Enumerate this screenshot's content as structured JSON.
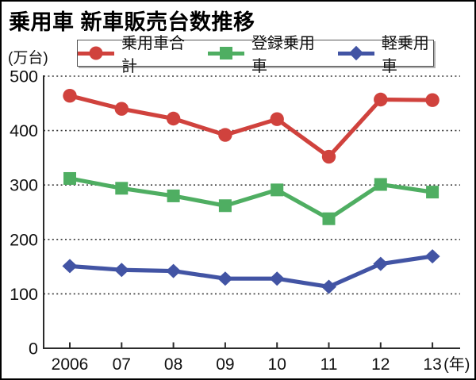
{
  "window": {
    "title": "乗用車 新車販売台数推移"
  },
  "axis_unit_label": "(万台)",
  "legend": {
    "items": [
      {
        "label": "乗用車合計",
        "marker": "circle",
        "color": "#d0423d"
      },
      {
        "label": "登録乗用車",
        "marker": "square",
        "color": "#4fae62"
      },
      {
        "label": "軽乗用車",
        "marker": "diamond",
        "color": "#4254a4"
      }
    ]
  },
  "chart_data": {
    "type": "line",
    "title": "乗用車 新車販売台数推移",
    "unit": "万台",
    "categories": [
      "2006",
      "07",
      "08",
      "09",
      "10",
      "11",
      "12",
      "13"
    ],
    "x_axis_suffix": "(年)",
    "series": [
      {
        "name": "乗用車合計",
        "marker": "circle",
        "color": "#d0423d",
        "values": [
          464,
          440,
          422,
          392,
          421,
          352,
          457,
          456
        ]
      },
      {
        "name": "登録乗用車",
        "marker": "square",
        "color": "#4fae62",
        "values": [
          312,
          294,
          280,
          262,
          291,
          238,
          301,
          287
        ]
      },
      {
        "name": "軽乗用車",
        "marker": "diamond",
        "color": "#4254a4",
        "values": [
          151,
          144,
          142,
          128,
          128,
          113,
          155,
          169
        ]
      }
    ],
    "ylim": [
      0,
      500
    ],
    "yticks": [
      0,
      100,
      200,
      300,
      400,
      500
    ],
    "grid": "horizontal-dotted",
    "legend_position": "top"
  }
}
